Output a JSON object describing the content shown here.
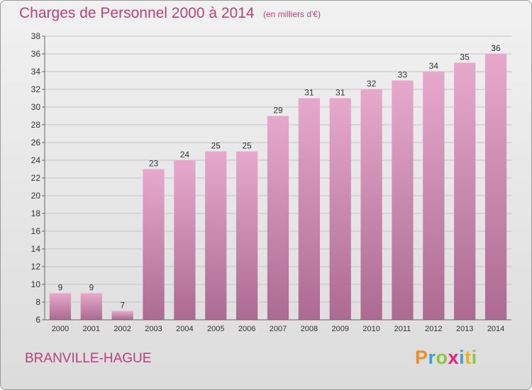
{
  "header": {
    "title": "Charges de Personnel 2000 à 2014",
    "subtitle": "(en milliers d'€)"
  },
  "footer": {
    "location": "BRANVILLE-HAGUE",
    "logo_letters": [
      "P",
      "r",
      "o",
      "x",
      "i",
      "t",
      "i"
    ],
    "logo_colors": [
      "#f28c1c",
      "#3aa0d8",
      "#8cc63f",
      "#ec1c7c",
      "#3aa0d8",
      "#f2b01c",
      "#8cc63f"
    ]
  },
  "colors": {
    "text_accent": "#b4447a",
    "bar_top": "#e6a9cc",
    "bar_bottom": "#ad6a92",
    "grid": "#c4c4c4",
    "axis_text": "#333333"
  },
  "chart_data": {
    "type": "bar",
    "categories": [
      "2000",
      "2001",
      "2002",
      "2003",
      "2004",
      "2005",
      "2006",
      "2007",
      "2008",
      "2009",
      "2010",
      "2011",
      "2012",
      "2013",
      "2014"
    ],
    "values": [
      9,
      9,
      7,
      23,
      24,
      25,
      25,
      29,
      31,
      31,
      32,
      33,
      34,
      35,
      36
    ],
    "data_labels": [
      "9",
      "9",
      "7",
      "23",
      "24",
      "25",
      "25",
      "29",
      "31",
      "31",
      "32",
      "33",
      "34",
      "35",
      "36"
    ],
    "ylim": [
      6,
      38
    ],
    "yticks": [
      6,
      8,
      10,
      12,
      14,
      16,
      18,
      20,
      22,
      24,
      26,
      28,
      30,
      32,
      34,
      36,
      38
    ],
    "grid": true,
    "title": "Charges de Personnel 2000 à 2014",
    "xlabel": "",
    "ylabel": ""
  }
}
